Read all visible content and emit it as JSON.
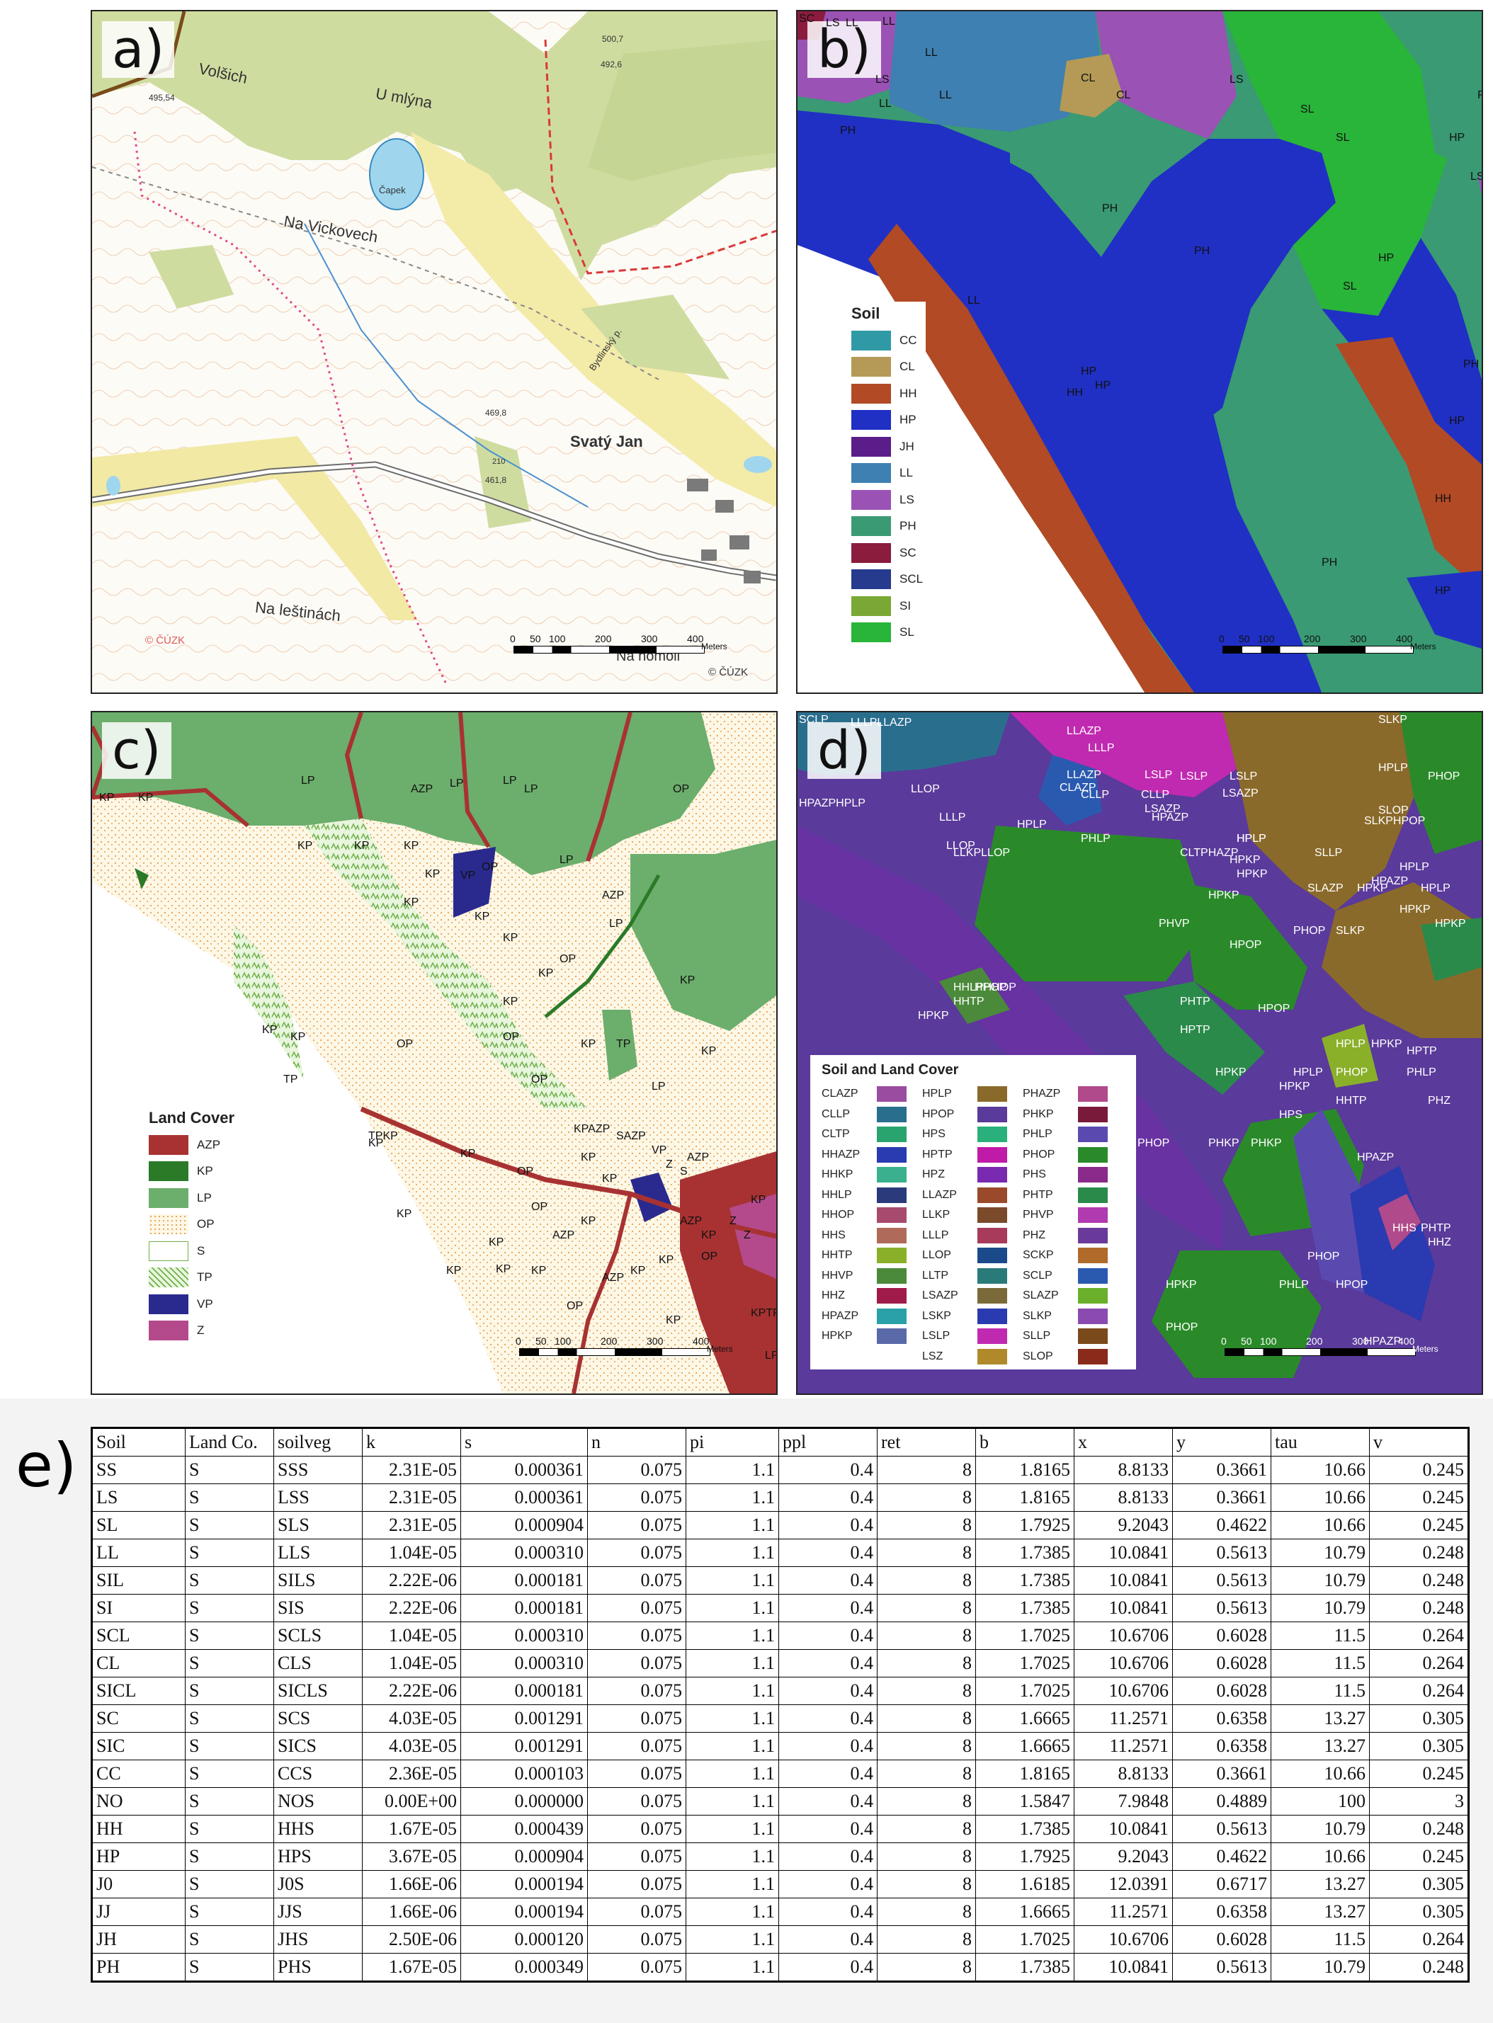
{
  "panels": {
    "a": {
      "label": "a)",
      "copyright": "© ČÚZK",
      "copyright_left": "© ČÚZK",
      "scale": {
        "ticks": [
          "0",
          "50",
          "100",
          "200",
          "300",
          "400"
        ],
        "unit": "Meters"
      },
      "places": [
        "Volšich",
        "U mlýna",
        "Čapek",
        "Na Vickovech",
        "Svatý Jan",
        "Na leštinách",
        "Na homoli",
        "Bydlinský p.",
        "495,54",
        "500,7",
        "492,6",
        "469,8",
        "461,8",
        "210"
      ]
    },
    "b": {
      "label": "b)",
      "legend_title": "Soil",
      "legend": [
        {
          "code": "CC",
          "color": "#2f9aa6"
        },
        {
          "code": "CL",
          "color": "#b49a56"
        },
        {
          "code": "HH",
          "color": "#b14a25"
        },
        {
          "code": "HP",
          "color": "#2030c4"
        },
        {
          "code": "JH",
          "color": "#5a1d8a"
        },
        {
          "code": "LL",
          "color": "#3e80b1"
        },
        {
          "code": "LS",
          "color": "#9a52b5"
        },
        {
          "code": "PH",
          "color": "#3a9a74"
        },
        {
          "code": "SC",
          "color": "#8b1c3e"
        },
        {
          "code": "SCL",
          "color": "#263a8e"
        },
        {
          "code": "SI",
          "color": "#7aa834"
        },
        {
          "code": "SL",
          "color": "#29b43a"
        }
      ],
      "labels": [
        "SC",
        "LS",
        "LL",
        "LL",
        "LL",
        "LS",
        "LL",
        "CL",
        "CL",
        "LL",
        "LS",
        "PH",
        "PH",
        "SL",
        "SL",
        "HP",
        "LS",
        "PH",
        "PH",
        "HP",
        "SL",
        "LL",
        "HP",
        "HP",
        "PH",
        "HH",
        "HP",
        "HH",
        "PH",
        "HP"
      ],
      "scale": {
        "ticks": [
          "0",
          "50",
          "100",
          "200",
          "300",
          "400"
        ],
        "unit": "Meters"
      }
    },
    "c": {
      "label": "c)",
      "legend_title": "Land Cover",
      "legend": [
        {
          "code": "AZP",
          "color": "#a83232"
        },
        {
          "code": "KP",
          "color": "#2a7a28"
        },
        {
          "code": "LP",
          "color": "#6cae6c"
        },
        {
          "code": "OP",
          "color": "#fbf3dd"
        },
        {
          "code": "S",
          "color": "#ffffff"
        },
        {
          "code": "TP",
          "color": "#c8e6b8"
        },
        {
          "code": "VP",
          "color": "#2a2a8e"
        },
        {
          "code": "Z",
          "color": "#b44a8c"
        }
      ],
      "labels": [
        "LP",
        "AZP",
        "LP",
        "KP",
        "KP",
        "LP",
        "LP",
        "KP",
        "OP",
        "KP",
        "KP",
        "KP",
        "LP",
        "OP",
        "VP",
        "KP",
        "KP",
        "KP",
        "AZP",
        "OP",
        "LP",
        "KP",
        "KP",
        "KP",
        "OP",
        "KP",
        "TP",
        "KP",
        "KP",
        "OP",
        "TP",
        "KP",
        "OP",
        "LP",
        "TPKP",
        "KP",
        "KP",
        "KPAZP",
        "SAZP",
        "KP",
        "VP",
        "AZP",
        "OP",
        "KP",
        "KP",
        "AZP",
        "AZP",
        "OP",
        "KP",
        "KP",
        "AZP",
        "KP",
        "OP",
        "KP",
        "KP",
        "KP",
        "KP",
        "OP",
        "KP",
        "KPTP",
        "LP",
        "KP",
        "KP",
        "Z",
        "Z",
        "Z",
        "S"
      ],
      "scale": {
        "ticks": [
          "0",
          "50",
          "100",
          "200",
          "300",
          "400"
        ],
        "unit": "Meters"
      }
    },
    "d": {
      "label": "d)",
      "legend_title": "Soil and Land Cover",
      "legend_cols": [
        [
          {
            "code": "CLAZP",
            "color": "#9a4da0"
          },
          {
            "code": "CLLP",
            "color": "#2a6e8e"
          },
          {
            "code": "CLTP",
            "color": "#2aa46e"
          },
          {
            "code": "HHAZP",
            "color": "#2a3ab0"
          },
          {
            "code": "HHKP",
            "color": "#3ab08e"
          },
          {
            "code": "HHLP",
            "color": "#2a3a7a"
          },
          {
            "code": "HHOP",
            "color": "#a84a6e"
          },
          {
            "code": "HHS",
            "color": "#b06a5a"
          },
          {
            "code": "HHTP",
            "color": "#8ab02a"
          },
          {
            "code": "HHVP",
            "color": "#4a8a3a"
          },
          {
            "code": "HHZ",
            "color": "#a01a4a"
          },
          {
            "code": "HPAZP",
            "color": "#2aa0a8"
          },
          {
            "code": "HPKP",
            "color": "#5a6aa8"
          }
        ],
        [
          {
            "code": "HPLP",
            "color": "#8a6a2a"
          },
          {
            "code": "HPOP",
            "color": "#5a3a9a"
          },
          {
            "code": "HPS",
            "color": "#2ab07a"
          },
          {
            "code": "HPTP",
            "color": "#c01aa8"
          },
          {
            "code": "HPZ",
            "color": "#7a2ab0"
          },
          {
            "code": "LLAZP",
            "color": "#9a4a2a"
          },
          {
            "code": "LLKP",
            "color": "#7a4a2a"
          },
          {
            "code": "LLLP",
            "color": "#a83a5a"
          },
          {
            "code": "LLOP",
            "color": "#1a4a8a"
          },
          {
            "code": "LLTP",
            "color": "#2a7a7a"
          },
          {
            "code": "LSAZP",
            "color": "#7a6a3a"
          },
          {
            "code": "LSKP",
            "color": "#2a3ab0"
          },
          {
            "code": "LSLP",
            "color": "#c02ab0"
          },
          {
            "code": "LSZ",
            "color": "#b08a2a"
          }
        ],
        [
          {
            "code": "PHAZP",
            "color": "#b04a8a"
          },
          {
            "code": "PHKP",
            "color": "#7a1a3a"
          },
          {
            "code": "PHLP",
            "color": "#5a4ab0"
          },
          {
            "code": "PHOP",
            "color": "#2a8a2a"
          },
          {
            "code": "PHS",
            "color": "#8a2a8a"
          },
          {
            "code": "PHTP",
            "color": "#2a8a4a"
          },
          {
            "code": "PHVP",
            "color": "#b03ab0"
          },
          {
            "code": "PHZ",
            "color": "#6a3a9a"
          },
          {
            "code": "SCKP",
            "color": "#b06a2a"
          },
          {
            "code": "SCLP",
            "color": "#2a5ab0"
          },
          {
            "code": "SLAZP",
            "color": "#6ab02a"
          },
          {
            "code": "SLKP",
            "color": "#8a4ab0"
          },
          {
            "code": "SLLP",
            "color": "#7a4a1a"
          },
          {
            "code": "SLOP",
            "color": "#8a2a1a"
          }
        ]
      ],
      "labels": [
        "SCLP",
        "LLLPLLAZP",
        "LLAZP",
        "SLKP",
        "LLLP",
        "LLAZP",
        "CLAZP",
        "LSLP",
        "LSLP",
        "LSLP",
        "HPLP",
        "PHOP",
        "HPAZPHPLP",
        "LLOP",
        "LLLP",
        "CLLP",
        "CLLP",
        "LSAZP",
        "LSAZP",
        "SLOP",
        "LLOP",
        "HPAZP",
        "HPLP",
        "SLKPHPOP",
        "HPLP",
        "PHLP",
        "HPLP",
        "SLLP",
        "HPLP",
        "HPKP",
        "LLKPLLOP",
        "CLTPHAZP",
        "HPKP",
        "HPAZP",
        "SLAZP",
        "HPKP",
        "HPLP",
        "PHVP",
        "HPKP",
        "PHOP",
        "SLKP",
        "HPKP",
        "HPOP",
        "HPKP",
        "HHLPHHOP",
        "HPOP",
        "PHTP",
        "HPKP",
        "HHTP",
        "HPTP",
        "HPLP",
        "HPOP",
        "HPTP",
        "PHOP",
        "HPKP",
        "HPLP",
        "PHZ",
        "HHTP",
        "PHLP",
        "HPKP",
        "HPKP",
        "HPAZP",
        "PHOP",
        "PHKP",
        "PHKP",
        "HPS",
        "HHS",
        "PHTP",
        "HHZ",
        "PHOP",
        "PHLP",
        "HPOP",
        "HPKP",
        "PHOP",
        "HPAZP"
      ],
      "scale": {
        "ticks": [
          "0",
          "50",
          "100",
          "200",
          "300",
          "400"
        ],
        "unit": "Meters"
      }
    }
  },
  "table": {
    "label": "e)",
    "headers": [
      "Soil",
      "Land Co.",
      "soilveg",
      "k",
      "s",
      "n",
      "pi",
      "ppl",
      "ret",
      "b",
      "x",
      "y",
      "tau",
      "v"
    ],
    "rows": [
      [
        "SS",
        "S",
        "SSS",
        "2.31E-05",
        "0.000361",
        "0.075",
        "1.1",
        "0.4",
        "8",
        "1.8165",
        "8.8133",
        "0.3661",
        "10.66",
        "0.245"
      ],
      [
        "LS",
        "S",
        "LSS",
        "2.31E-05",
        "0.000361",
        "0.075",
        "1.1",
        "0.4",
        "8",
        "1.8165",
        "8.8133",
        "0.3661",
        "10.66",
        "0.245"
      ],
      [
        "SL",
        "S",
        "SLS",
        "2.31E-05",
        "0.000904",
        "0.075",
        "1.1",
        "0.4",
        "8",
        "1.7925",
        "9.2043",
        "0.4622",
        "10.66",
        "0.245"
      ],
      [
        "LL",
        "S",
        "LLS",
        "1.04E-05",
        "0.000310",
        "0.075",
        "1.1",
        "0.4",
        "8",
        "1.7385",
        "10.0841",
        "0.5613",
        "10.79",
        "0.248"
      ],
      [
        "SIL",
        "S",
        "SILS",
        "2.22E-06",
        "0.000181",
        "0.075",
        "1.1",
        "0.4",
        "8",
        "1.7385",
        "10.0841",
        "0.5613",
        "10.79",
        "0.248"
      ],
      [
        "SI",
        "S",
        "SIS",
        "2.22E-06",
        "0.000181",
        "0.075",
        "1.1",
        "0.4",
        "8",
        "1.7385",
        "10.0841",
        "0.5613",
        "10.79",
        "0.248"
      ],
      [
        "SCL",
        "S",
        "SCLS",
        "1.04E-05",
        "0.000310",
        "0.075",
        "1.1",
        "0.4",
        "8",
        "1.7025",
        "10.6706",
        "0.6028",
        "11.5",
        "0.264"
      ],
      [
        "CL",
        "S",
        "CLS",
        "1.04E-05",
        "0.000310",
        "0.075",
        "1.1",
        "0.4",
        "8",
        "1.7025",
        "10.6706",
        "0.6028",
        "11.5",
        "0.264"
      ],
      [
        "SICL",
        "S",
        "SICLS",
        "2.22E-06",
        "0.000181",
        "0.075",
        "1.1",
        "0.4",
        "8",
        "1.7025",
        "10.6706",
        "0.6028",
        "11.5",
        "0.264"
      ],
      [
        "SC",
        "S",
        "SCS",
        "4.03E-05",
        "0.001291",
        "0.075",
        "1.1",
        "0.4",
        "8",
        "1.6665",
        "11.2571",
        "0.6358",
        "13.27",
        "0.305"
      ],
      [
        "SIC",
        "S",
        "SICS",
        "4.03E-05",
        "0.001291",
        "0.075",
        "1.1",
        "0.4",
        "8",
        "1.6665",
        "11.2571",
        "0.6358",
        "13.27",
        "0.305"
      ],
      [
        "CC",
        "S",
        "CCS",
        "2.36E-05",
        "0.000103",
        "0.075",
        "1.1",
        "0.4",
        "8",
        "1.8165",
        "8.8133",
        "0.3661",
        "10.66",
        "0.245"
      ],
      [
        "NO",
        "S",
        "NOS",
        "0.00E+00",
        "0.000000",
        "0.075",
        "1.1",
        "0.4",
        "8",
        "1.5847",
        "7.9848",
        "0.4889",
        "100",
        "3"
      ],
      [
        "HH",
        "S",
        "HHS",
        "1.67E-05",
        "0.000439",
        "0.075",
        "1.1",
        "0.4",
        "8",
        "1.7385",
        "10.0841",
        "0.5613",
        "10.79",
        "0.248"
      ],
      [
        "HP",
        "S",
        "HPS",
        "3.67E-05",
        "0.000904",
        "0.075",
        "1.1",
        "0.4",
        "8",
        "1.7925",
        "9.2043",
        "0.4622",
        "10.66",
        "0.245"
      ],
      [
        "J0",
        "S",
        "J0S",
        "1.66E-06",
        "0.000194",
        "0.075",
        "1.1",
        "0.4",
        "8",
        "1.6185",
        "12.0391",
        "0.6717",
        "13.27",
        "0.305"
      ],
      [
        "JJ",
        "S",
        "JJS",
        "1.66E-06",
        "0.000194",
        "0.075",
        "1.1",
        "0.4",
        "8",
        "1.6665",
        "11.2571",
        "0.6358",
        "13.27",
        "0.305"
      ],
      [
        "JH",
        "S",
        "JHS",
        "2.50E-06",
        "0.000120",
        "0.075",
        "1.1",
        "0.4",
        "8",
        "1.7025",
        "10.6706",
        "0.6028",
        "11.5",
        "0.264"
      ],
      [
        "PH",
        "S",
        "PHS",
        "1.67E-05",
        "0.000349",
        "0.075",
        "1.1",
        "0.4",
        "8",
        "1.7385",
        "10.0841",
        "0.5613",
        "10.79",
        "0.248"
      ]
    ]
  }
}
